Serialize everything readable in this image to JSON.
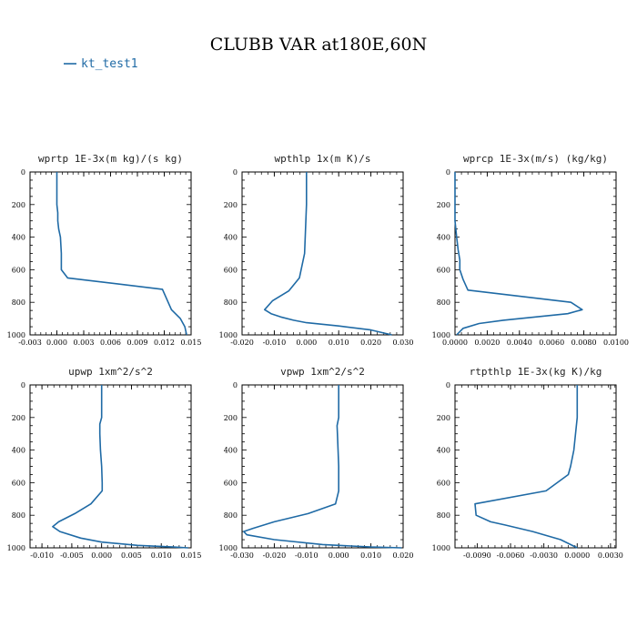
{
  "title": "CLUBB VAR at180E,60N",
  "legend": [
    {
      "label": "kt_test1",
      "color": "#1f6aa5"
    }
  ],
  "colors": {
    "line": "#1f6aa5",
    "axis": "#000000"
  },
  "chart_data": [
    {
      "type": "line",
      "title": "wprtp  1E-3x(m kg)/(s kg)",
      "xlim": [
        -0.003,
        0.015
      ],
      "ylim": [
        1000,
        0
      ],
      "xticks": [
        "-0.003",
        "0.000",
        "0.003",
        "0.006",
        "0.009",
        "0.012",
        "0.015"
      ],
      "xtick_values": [
        -0.003,
        0.0,
        0.003,
        0.006,
        0.009,
        0.012,
        0.015
      ],
      "yticks": [
        "0",
        "200",
        "400",
        "600",
        "800",
        "1000"
      ],
      "ytick_values": [
        0,
        200,
        400,
        600,
        800,
        1000
      ],
      "series": [
        {
          "name": "kt_test1",
          "x": [
            0.0,
            0.0,
            0.0,
            0.0001,
            0.0001,
            0.0002,
            0.0004,
            0.0005,
            0.0005,
            0.0012,
            0.0118,
            0.0128,
            0.0138,
            0.0143,
            0.0145
          ],
          "y": [
            0,
            100,
            200,
            250,
            300,
            350,
            400,
            500,
            600,
            650,
            720,
            845,
            900,
            950,
            1000
          ]
        }
      ]
    },
    {
      "type": "line",
      "title": "wpthlp  1x(m K)/s",
      "xlim": [
        -0.02,
        0.03
      ],
      "ylim": [
        1000,
        0
      ],
      "xticks": [
        "-0.020",
        "-0.010",
        "0.000",
        "0.010",
        "0.020",
        "0.030"
      ],
      "xtick_values": [
        -0.02,
        -0.01,
        0.0,
        0.01,
        0.02,
        0.03
      ],
      "yticks": [
        "0",
        "200",
        "400",
        "600",
        "800",
        "1000"
      ],
      "ytick_values": [
        0,
        200,
        400,
        600,
        800,
        1000
      ],
      "series": [
        {
          "name": "kt_test1",
          "x": [
            0.0,
            0.0,
            0.0,
            -0.0002,
            -0.0004,
            -0.0006,
            -0.0022,
            -0.0055,
            -0.0105,
            -0.013,
            -0.011,
            -0.008,
            -0.004,
            0.0,
            0.01,
            0.02,
            0.0265
          ],
          "y": [
            0,
            100,
            200,
            300,
            400,
            500,
            650,
            730,
            790,
            845,
            870,
            890,
            910,
            925,
            945,
            970,
            1000
          ]
        }
      ]
    },
    {
      "type": "line",
      "title": "wprcp  1E-3x(m/s) (kg/kg)",
      "xlim": [
        0.0,
        0.01
      ],
      "ylim": [
        1000,
        0
      ],
      "xticks": [
        "0.0000",
        "0.0020",
        "0.0040",
        "0.0060",
        "0.0080",
        "0.0100"
      ],
      "xtick_values": [
        0.0,
        0.002,
        0.004,
        0.006,
        0.008,
        0.01
      ],
      "yticks": [
        "0",
        "200",
        "400",
        "600",
        "800",
        "1000"
      ],
      "ytick_values": [
        0,
        200,
        400,
        600,
        800,
        1000
      ],
      "series": [
        {
          "name": "kt_test1",
          "x": [
            0.0,
            0.0,
            0.0001,
            0.0002,
            0.0003,
            0.0003,
            0.0005,
            0.0008,
            0.0072,
            0.0079,
            0.007,
            0.005,
            0.003,
            0.0015,
            0.0005,
            0.0001
          ],
          "y": [
            0,
            300,
            400,
            480,
            540,
            600,
            660,
            725,
            800,
            845,
            870,
            890,
            910,
            930,
            960,
            1000
          ]
        }
      ]
    },
    {
      "type": "line",
      "title": "upwp  1xm^2/s^2",
      "xlim": [
        -0.012,
        0.015
      ],
      "ylim": [
        1000,
        0
      ],
      "xticks": [
        "-0.010",
        "-0.005",
        "0.000",
        "0.005",
        "0.010",
        "0.015"
      ],
      "xtick_values": [
        -0.01,
        -0.005,
        0.0,
        0.005,
        0.01,
        0.015
      ],
      "yticks": [
        "0",
        "200",
        "400",
        "600",
        "800",
        "1000"
      ],
      "ytick_values": [
        0,
        200,
        400,
        600,
        800,
        1000
      ],
      "series": [
        {
          "name": "kt_test1",
          "x": [
            0.0,
            0.0,
            0.0,
            -0.0003,
            -0.0003,
            -0.0002,
            0.0,
            0.0001,
            0.0001,
            -0.0018,
            -0.0045,
            -0.0072,
            -0.0082,
            -0.007,
            -0.0035,
            0.0,
            0.006,
            0.012,
            0.0145
          ],
          "y": [
            0,
            100,
            200,
            240,
            300,
            400,
            500,
            600,
            650,
            730,
            790,
            840,
            870,
            900,
            940,
            965,
            985,
            995,
            1000
          ]
        }
      ]
    },
    {
      "type": "line",
      "title": "vpwp  1xm^2/s^2",
      "xlim": [
        -0.03,
        0.02
      ],
      "ylim": [
        1000,
        0
      ],
      "xticks": [
        "-0.030",
        "-0.020",
        "-0.010",
        "0.000",
        "0.010",
        "0.020"
      ],
      "xtick_values": [
        -0.03,
        -0.02,
        -0.01,
        0.0,
        0.01,
        0.02
      ],
      "yticks": [
        "0",
        "200",
        "400",
        "600",
        "800",
        "1000"
      ],
      "ytick_values": [
        0,
        200,
        400,
        600,
        800,
        1000
      ],
      "series": [
        {
          "name": "kt_test1",
          "x": [
            0.0,
            0.0,
            0.0,
            -0.0005,
            -0.0004,
            -0.0002,
            0.0,
            0.0,
            -0.001,
            -0.0095,
            -0.02,
            -0.0265,
            -0.0295,
            -0.0285,
            -0.02,
            -0.005,
            0.01,
            0.0195
          ],
          "y": [
            0,
            100,
            200,
            250,
            300,
            400,
            500,
            650,
            730,
            790,
            840,
            880,
            900,
            920,
            950,
            980,
            995,
            1000
          ]
        }
      ]
    },
    {
      "type": "line",
      "title": "rtpthlp  1E-3x(kg K)/kg",
      "xlim": [
        -0.011,
        0.0035
      ],
      "ylim": [
        1000,
        0
      ],
      "xticks": [
        "-0.0090",
        "-0.0060",
        "-0.0030",
        "0.0000",
        "0.0030"
      ],
      "xtick_values": [
        -0.009,
        -0.006,
        -0.003,
        0.0,
        0.003
      ],
      "yticks": [
        "0",
        "200",
        "400",
        "600",
        "800",
        "1000"
      ],
      "ytick_values": [
        0,
        200,
        400,
        600,
        800,
        1000
      ],
      "series": [
        {
          "name": "kt_test1",
          "x": [
            0.0,
            0.0,
            0.0,
            -0.0003,
            -0.0006,
            -0.0008,
            -0.0028,
            -0.0092,
            -0.0091,
            -0.0078,
            -0.0065,
            -0.004,
            -0.0015,
            0.0
          ],
          "y": [
            0,
            100,
            200,
            400,
            500,
            550,
            650,
            730,
            800,
            840,
            860,
            900,
            950,
            1000
          ]
        }
      ]
    }
  ]
}
